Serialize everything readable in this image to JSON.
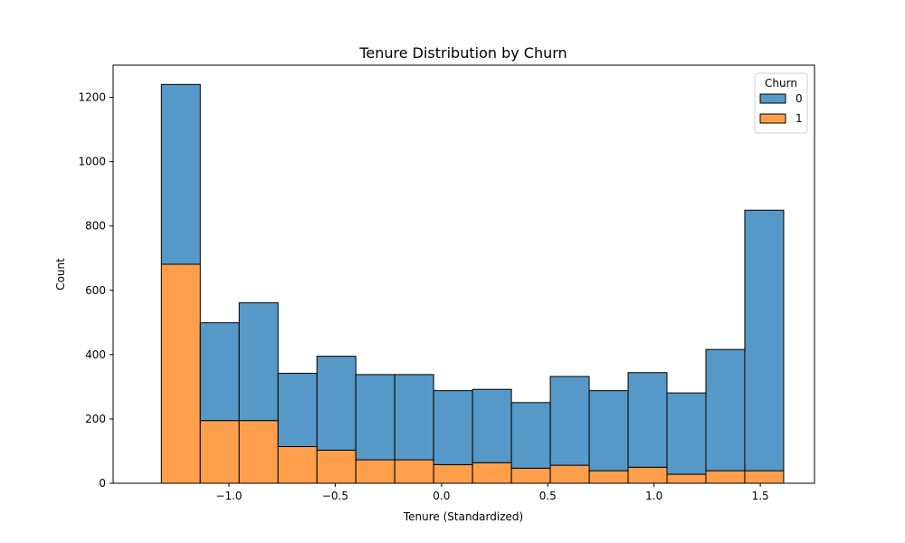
{
  "chart_data": {
    "type": "bar",
    "title": "Tenure Distribution by Churn",
    "xlabel": "Tenure (Standardized)",
    "ylabel": "Count",
    "xlim": [
      -1.545,
      1.755
    ],
    "ylim": [
      0,
      1300
    ],
    "x_ticks": [
      -1.0,
      -0.5,
      0.0,
      0.5,
      1.0,
      1.5
    ],
    "x_tick_labels": [
      "−1.0",
      "−0.5",
      "0.0",
      "0.5",
      "1.0",
      "1.5"
    ],
    "y_ticks": [
      0,
      200,
      400,
      600,
      800,
      1000,
      1200
    ],
    "y_tick_labels": [
      "0",
      "200",
      "400",
      "600",
      "800",
      "1000",
      "1200"
    ],
    "bin_edges": [
      -1.318,
      -1.135,
      -0.952,
      -0.769,
      -0.586,
      -0.403,
      -0.22,
      -0.037,
      0.146,
      0.329,
      0.512,
      0.695,
      0.878,
      1.061,
      1.244,
      1.427,
      1.61
    ],
    "stacked": true,
    "grid": false,
    "legend": {
      "title": "Churn",
      "placement": "top-right"
    },
    "series": [
      {
        "name": "1",
        "color": "#ff9f4b",
        "values": [
          681,
          195,
          195,
          114,
          103,
          73,
          73,
          58,
          64,
          47,
          56,
          39,
          50,
          28,
          39,
          39
        ]
      },
      {
        "name": "0",
        "color": "#5699c8",
        "values": [
          559,
          304,
          366,
          228,
          292,
          265,
          265,
          230,
          228,
          204,
          276,
          249,
          294,
          253,
          377,
          810
        ]
      }
    ]
  }
}
